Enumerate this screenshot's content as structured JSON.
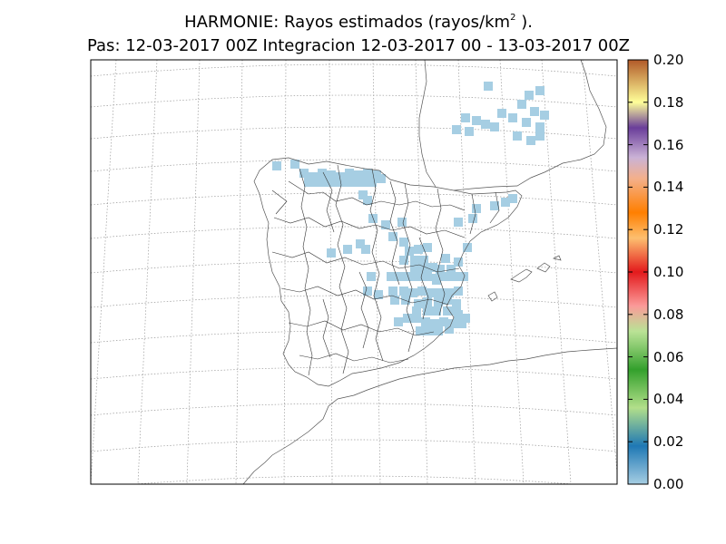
{
  "title": {
    "line1_prefix": "HARMONIE: Rayos estimados  (rayos/km",
    "line1_sup": "2",
    "line1_suffix": " ).",
    "line2": "Pas: 12-03-2017 00Z Integracion 12-03-2017 00 - 13-03-2017 00Z"
  },
  "colorbar": {
    "ticks": [
      "0.00",
      "0.02",
      "0.04",
      "0.06",
      "0.08",
      "0.10",
      "0.12",
      "0.14",
      "0.16",
      "0.18",
      "0.20"
    ],
    "min": 0,
    "max": 0.2,
    "colors": [
      "#a6cee3",
      "#1f78b4",
      "#b2df8a",
      "#33a02c",
      "#fb9a99",
      "#e31a1c",
      "#fdbf6f",
      "#ff7f00",
      "#cab2d6",
      "#6a3d9a",
      "#ffff99",
      "#b15928"
    ]
  },
  "map": {
    "region": "Península Ibérica y Baleares",
    "projection": "lambert-conformal",
    "graticule": "dotted",
    "field_color": "#a6cee3"
  }
}
